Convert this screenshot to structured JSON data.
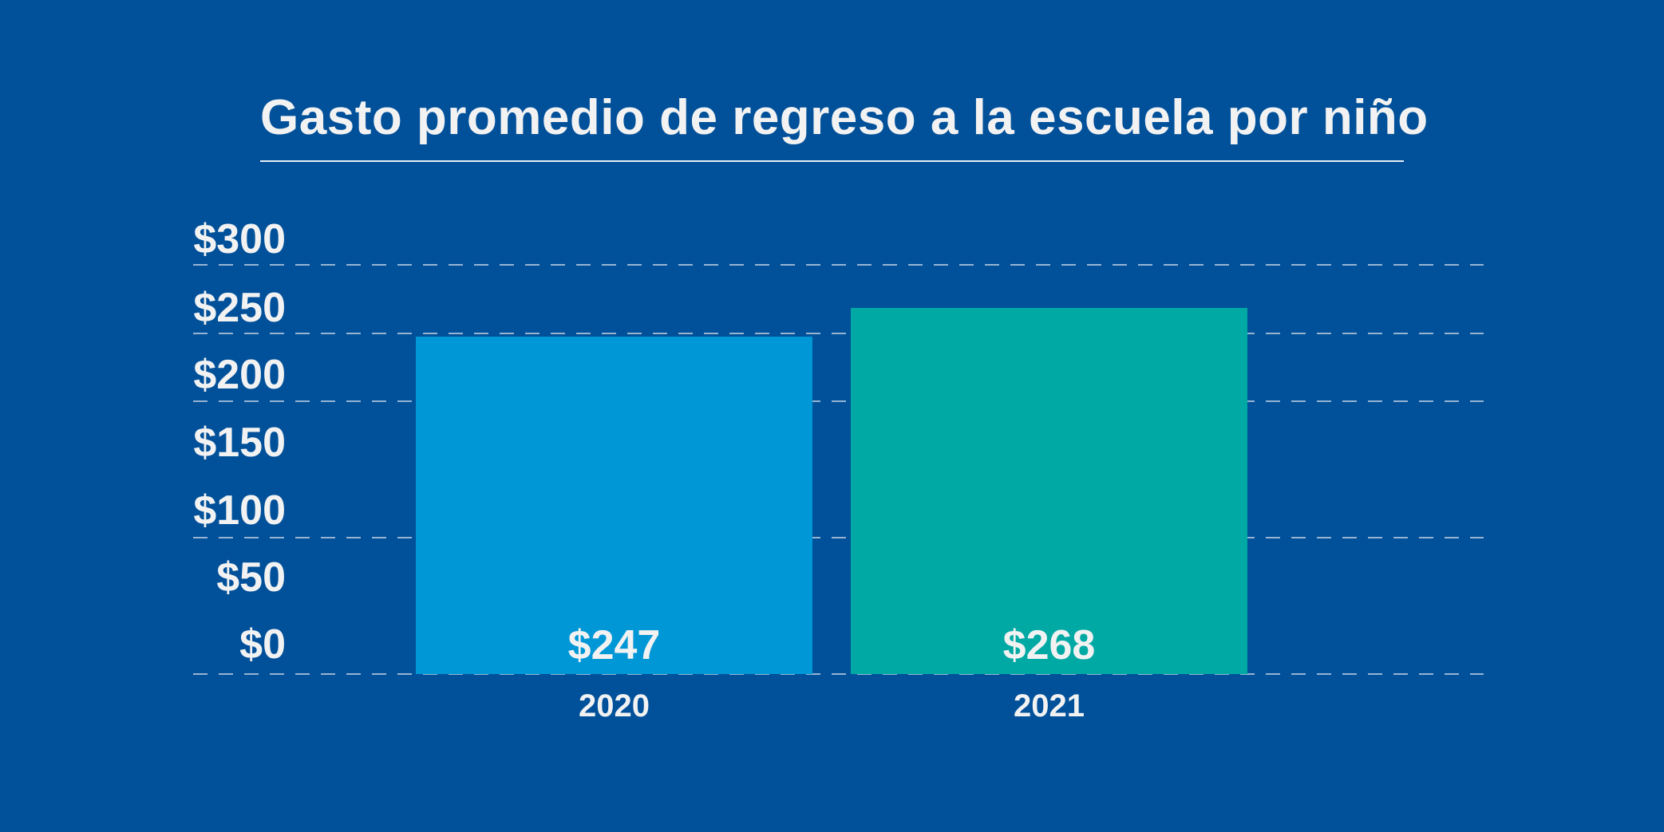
{
  "chart_data": {
    "type": "bar",
    "title": "Gasto promedio de regreso a la escuela por niño",
    "categories": [
      "2020",
      "2021"
    ],
    "values": [
      247,
      268
    ],
    "value_labels": [
      "$247",
      "$268"
    ],
    "y_tick_labels": [
      "$300",
      "$250",
      "$200",
      "$150",
      "$100",
      "$50",
      "$0"
    ],
    "ylim": [
      0,
      300
    ],
    "xlabel": "",
    "ylabel": "",
    "grid": true,
    "colors": {
      "background": "#00509a",
      "bars": [
        "#0097d6",
        "#00a9a4"
      ],
      "text": "#f2f2f2"
    }
  }
}
